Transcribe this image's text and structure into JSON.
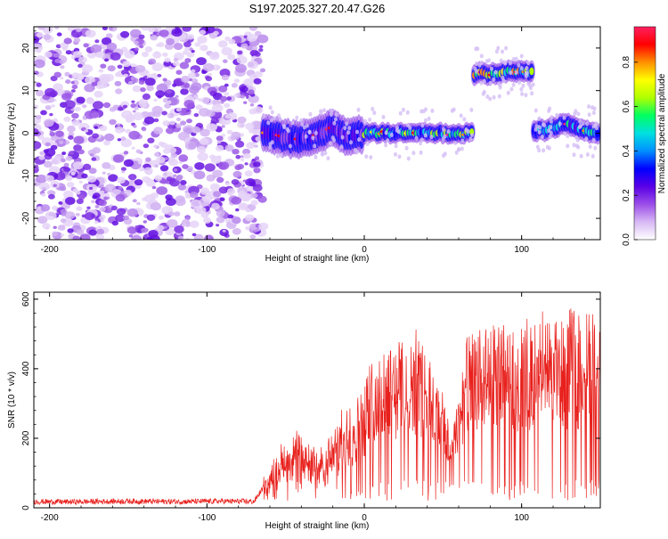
{
  "title": "S197.2025.327.20.47.G26",
  "chart_data": [
    {
      "type": "heatmap",
      "title": "S197.2025.327.20.47.G26",
      "xlabel": "Height of straight line (km)",
      "ylabel": "Frequency (Hz)",
      "xlim": [
        -210,
        150
      ],
      "ylim": [
        -25,
        25
      ],
      "xticks": [
        -200,
        -100,
        0,
        100
      ],
      "xtick_labels": [
        "-200",
        "-100",
        "0",
        "100"
      ],
      "yticks": [
        -20,
        -10,
        0,
        10,
        20
      ],
      "ytick_labels": [
        "-20",
        "-10",
        "0",
        "10",
        "20"
      ],
      "colorbar": {
        "label": "Normalized spectral amplitude",
        "ticks": [
          0.0,
          0.2,
          0.4,
          0.6,
          0.8
        ],
        "tick_labels": [
          "0.0",
          "0.2",
          "0.4",
          "0.6",
          "0.8"
        ],
        "range": [
          0,
          0.96
        ],
        "colormap": "rainbow",
        "palette": [
          "#ffffff",
          "#d8b8f5",
          "#9b4de8",
          "#5a00e6",
          "#0000ff",
          "#0090ff",
          "#00e0e0",
          "#00ff60",
          "#b0ff00",
          "#ffff00",
          "#ff9000",
          "#ff0000",
          "#ff2060"
        ]
      },
      "noise_region": {
        "x": [
          -210,
          -64
        ],
        "amplitude": 0.15
      },
      "traces": [
        {
          "x": [
            -64,
            -45,
            -30,
            -20,
            -12,
            0
          ],
          "y": [
            0,
            -1.5,
            -0.5,
            1.5,
            -1,
            0
          ],
          "amplitude": 0.25,
          "thickness_hz": 3.5
        },
        {
          "x": [
            0,
            20,
            40,
            70
          ],
          "y": [
            0,
            0,
            0,
            0
          ],
          "amplitude": 0.55,
          "thickness_hz": 1.8
        },
        {
          "x": [
            70,
            80,
            95,
            108
          ],
          "y": [
            14,
            14,
            14.5,
            14.5
          ],
          "amplitude": 0.7,
          "thickness_hz": 2.0
        },
        {
          "x": [
            108,
            118,
            128,
            140,
            150
          ],
          "y": [
            0.5,
            1,
            2.5,
            0.5,
            -0.5
          ],
          "amplitude": 0.45,
          "thickness_hz": 2.0
        }
      ]
    },
    {
      "type": "line",
      "xlabel": "Height of straight line (km)",
      "ylabel": "SNR (10 * v/v)",
      "xlim": [
        -210,
        150
      ],
      "ylim": [
        0,
        620
      ],
      "xticks": [
        -200,
        -100,
        0,
        100
      ],
      "xtick_labels": [
        "-200",
        "-100",
        "0",
        "100"
      ],
      "yticks": [
        0,
        200,
        400,
        600
      ],
      "ytick_labels": [
        "0",
        "200",
        "400",
        "600"
      ],
      "color": "#e8201c",
      "series": [
        {
          "x": [
            -210,
            -190,
            -170,
            -150,
            -130,
            -110,
            -90,
            -70,
            -64,
            -55,
            -45,
            -35,
            -25,
            -15,
            -5,
            5,
            15,
            25,
            35,
            45,
            55,
            65,
            75,
            85,
            95,
            105,
            115,
            125,
            135,
            145,
            150
          ],
          "y": [
            18,
            17,
            18,
            19,
            18,
            18,
            19,
            18,
            60,
            120,
            170,
            140,
            130,
            200,
            250,
            320,
            370,
            380,
            390,
            300,
            180,
            380,
            400,
            410,
            420,
            410,
            430,
            420,
            440,
            450,
            430
          ]
        }
      ]
    }
  ]
}
